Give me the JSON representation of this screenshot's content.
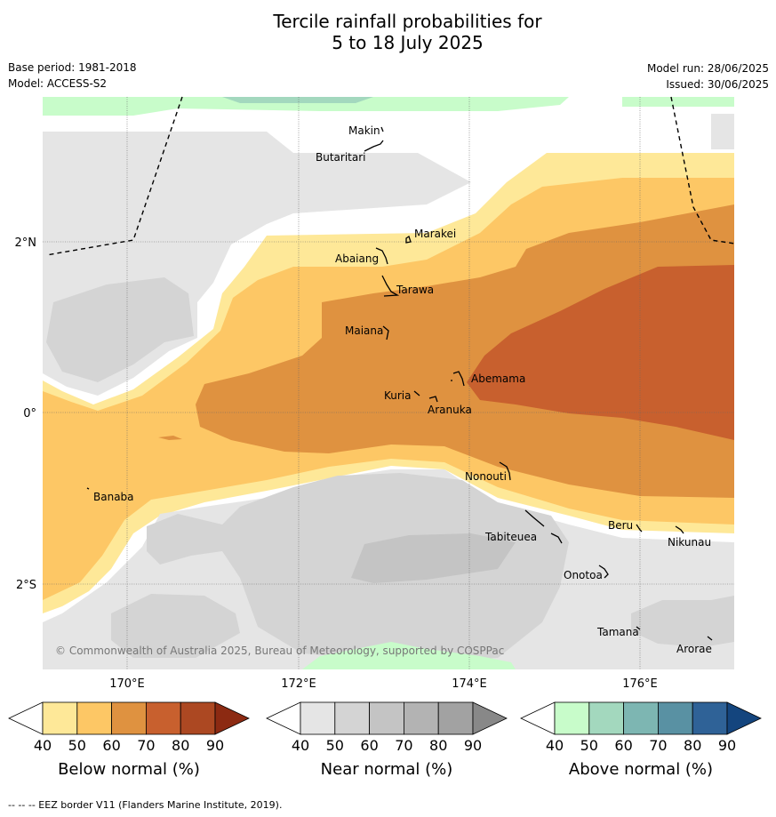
{
  "title_line1": "Tercile rainfall probabilities for",
  "title_line2": "5 to 18 July 2025",
  "base_period": "Base period: 1981-2018",
  "model": "Model: ACCESS-S2",
  "model_run": "Model run: 28/06/2025",
  "issued": "Issued: 30/06/2025",
  "copyright": "© Commonwealth of Australia 2025, Bureau of Meteorology, supported by COSPPac",
  "footer": "--  --  -- EEZ border V11 (Flanders Marine Institute, 2019).",
  "map": {
    "lat_labels": [
      "2°N",
      "0°",
      "2°S"
    ],
    "lon_labels": [
      "170°E",
      "172°E",
      "174°E",
      "176°E"
    ],
    "places": [
      "Makin",
      "Butaritari",
      "Marakei",
      "Abaiang",
      "Tarawa",
      "Maiana",
      "Abemama",
      "Kuria",
      "Aranuka",
      "Nonouti",
      "Banaba",
      "Beru",
      "Tabiteuea",
      "Nikunau",
      "Onotoa",
      "Tamana",
      "Arorae"
    ]
  },
  "legend": {
    "below": {
      "title": "Below normal (%)",
      "ticks": [
        "40",
        "50",
        "60",
        "70",
        "80",
        "90"
      ],
      "colors": [
        "#ffffff",
        "#fee898",
        "#fdc765",
        "#df9240",
        "#c8602e",
        "#ac4822",
        "#8c2a12"
      ]
    },
    "near": {
      "title": "Near normal (%)",
      "ticks": [
        "40",
        "50",
        "60",
        "70",
        "80",
        "90"
      ],
      "colors": [
        "#ffffff",
        "#e5e5e5",
        "#d4d4d4",
        "#c4c4c4",
        "#b3b3b3",
        "#a2a2a2",
        "#888888"
      ]
    },
    "above": {
      "title": "Above normal (%)",
      "ticks": [
        "40",
        "50",
        "60",
        "70",
        "80",
        "90"
      ],
      "colors": [
        "#ffffff",
        "#c8fcca",
        "#a3d8be",
        "#7db6b2",
        "#5991a3",
        "#2f6297",
        "#14457e"
      ]
    }
  }
}
